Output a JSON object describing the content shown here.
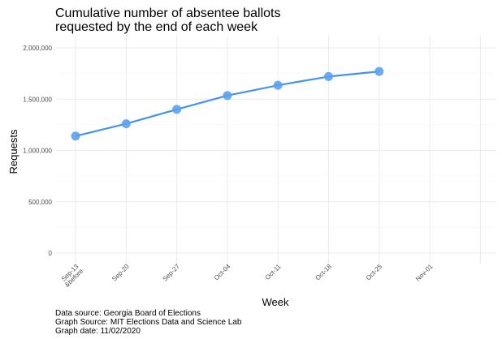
{
  "chart_data": {
    "type": "line",
    "title_lines": [
      "Cumulative number of absentee ballots",
      "requested by the end of each week"
    ],
    "xlabel": "Week",
    "ylabel": "Requests",
    "categories": [
      "Sep-13 &before",
      "Sep-20",
      "Sep-27",
      "Oct-04",
      "Oct-11",
      "Oct-18",
      "Oct-25",
      "Nov-01"
    ],
    "category_label_lines": [
      [
        "Sep-13",
        "&before"
      ],
      [
        "Sep-20"
      ],
      [
        "Sep-27"
      ],
      [
        "Oct-04"
      ],
      [
        "Oct-11"
      ],
      [
        "Oct-18"
      ],
      [
        "Oct-25"
      ],
      [
        "Nov-01"
      ]
    ],
    "x_extra_gridline_after_last": true,
    "values": [
      1140000,
      1260000,
      1400000,
      1535000,
      1635000,
      1720000,
      1770000,
      null
    ],
    "ylim": [
      0,
      2000000
    ],
    "yticks": [
      0,
      500000,
      1000000,
      1500000,
      2000000
    ],
    "ytick_labels": [
      "0",
      "500,000",
      "1,000,000",
      "1,500,000",
      "2,000,000"
    ],
    "grid": true,
    "line_color": "#4393ec",
    "point_color": "#5aa2f0"
  },
  "caption": {
    "line1": "Data source: Georgia Board of Elections",
    "line2": "Graph Source: MIT Elections Data and Science Lab",
    "line3": "Graph date: 11/02/2020"
  }
}
